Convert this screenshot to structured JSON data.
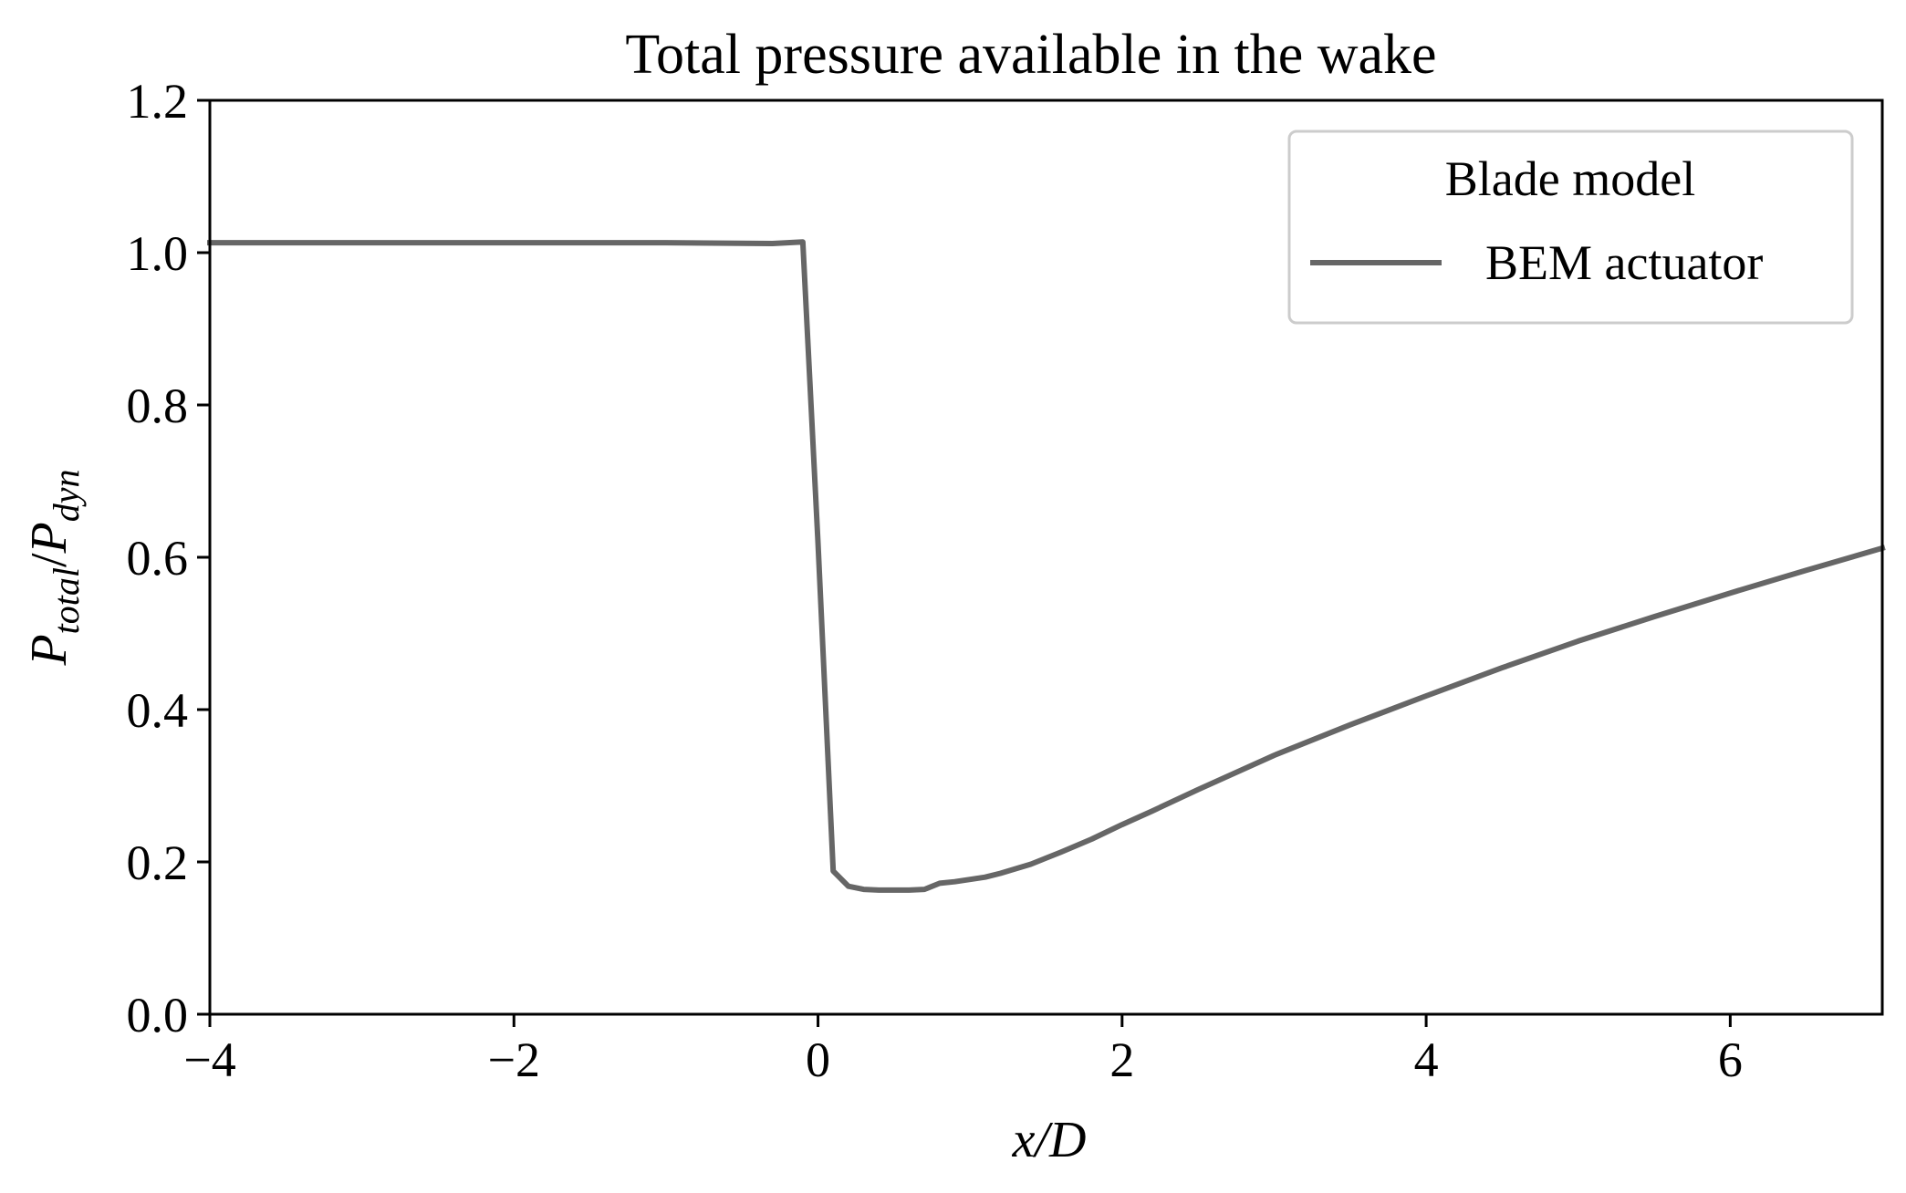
{
  "chart_data": {
    "type": "line",
    "title": "Total pressure available in the wake",
    "xlabel": "x/D",
    "ylabel": {
      "base1": "P",
      "sub1": "total",
      "slash": "/",
      "base2": "P",
      "sub2": "dyn"
    },
    "xlim": [
      -4,
      7
    ],
    "ylim": [
      0.0,
      1.2
    ],
    "xticks": [
      {
        "value": -4,
        "label": "−4"
      },
      {
        "value": -2,
        "label": "−2"
      },
      {
        "value": 0,
        "label": "0"
      },
      {
        "value": 2,
        "label": "2"
      },
      {
        "value": 4,
        "label": "4"
      },
      {
        "value": 6,
        "label": "6"
      }
    ],
    "yticks": [
      {
        "value": 0.0,
        "label": "0.0"
      },
      {
        "value": 0.2,
        "label": "0.2"
      },
      {
        "value": 0.4,
        "label": "0.4"
      },
      {
        "value": 0.6,
        "label": "0.6"
      },
      {
        "value": 0.8,
        "label": "0.8"
      },
      {
        "value": 1.0,
        "label": "1.0"
      },
      {
        "value": 1.2,
        "label": "1.2"
      }
    ],
    "grid": false,
    "legend": {
      "title": "Blade model",
      "placement": "top-right"
    },
    "series": [
      {
        "name": "BEM actuator",
        "color": "#666666",
        "x": [
          -4.0,
          -3.0,
          -2.0,
          -1.0,
          -0.3,
          -0.1,
          0.0,
          0.1,
          0.2,
          0.3,
          0.4,
          0.5,
          0.6,
          0.7,
          0.8,
          0.9,
          1.0,
          1.1,
          1.2,
          1.4,
          1.6,
          1.8,
          2.0,
          2.2,
          2.5,
          3.0,
          3.5,
          4.0,
          4.5,
          5.0,
          5.5,
          6.0,
          6.5,
          7.0
        ],
        "y": [
          1.013,
          1.013,
          1.013,
          1.013,
          1.012,
          1.014,
          0.62,
          0.188,
          0.168,
          0.164,
          0.163,
          0.163,
          0.163,
          0.164,
          0.172,
          0.174,
          0.177,
          0.18,
          0.185,
          0.197,
          0.213,
          0.23,
          0.249,
          0.267,
          0.295,
          0.34,
          0.38,
          0.418,
          0.455,
          0.49,
          0.522,
          0.553,
          0.583,
          0.612
        ]
      }
    ]
  }
}
